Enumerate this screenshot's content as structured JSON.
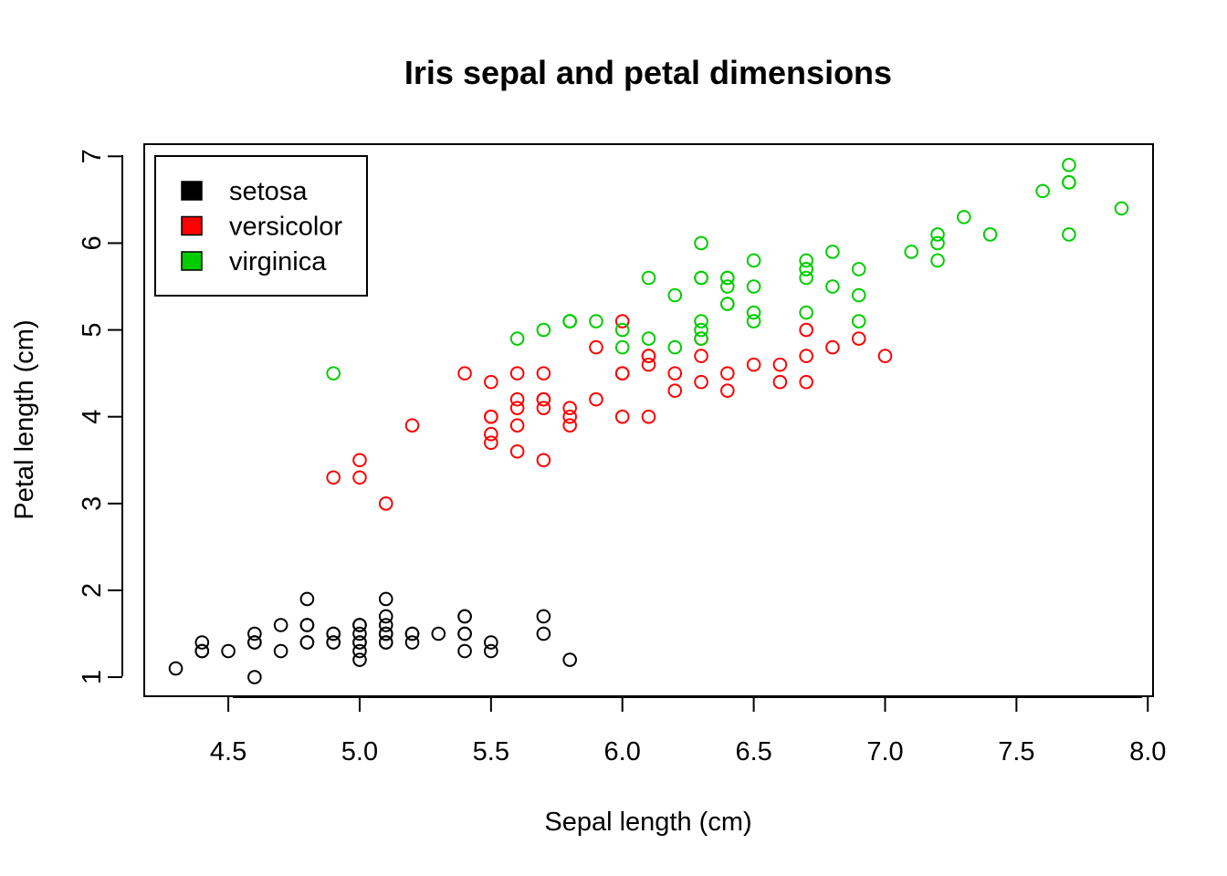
{
  "chart_data": {
    "type": "scatter",
    "title": "Iris sepal and petal dimensions",
    "xlabel": "Sepal length (cm)",
    "ylabel": "Petal length (cm)",
    "xlim": [
      4.18,
      8.02
    ],
    "ylim": [
      0.78,
      7.14
    ],
    "xticks": [
      "4.5",
      "5.0",
      "5.5",
      "6.0",
      "6.5",
      "7.0",
      "7.5",
      "8.0"
    ],
    "yticks": [
      "1",
      "2",
      "3",
      "4",
      "5",
      "6",
      "7"
    ],
    "grid": false,
    "legend_position": "top-left",
    "marker": "open-circle",
    "series": [
      {
        "name": "setosa",
        "color": "#000000",
        "points": [
          [
            5.1,
            1.4
          ],
          [
            4.9,
            1.4
          ],
          [
            4.7,
            1.3
          ],
          [
            4.6,
            1.5
          ],
          [
            5.0,
            1.4
          ],
          [
            5.4,
            1.7
          ],
          [
            4.6,
            1.4
          ],
          [
            5.0,
            1.5
          ],
          [
            4.4,
            1.4
          ],
          [
            4.9,
            1.5
          ],
          [
            5.4,
            1.5
          ],
          [
            4.8,
            1.6
          ],
          [
            4.8,
            1.4
          ],
          [
            4.3,
            1.1
          ],
          [
            5.8,
            1.2
          ],
          [
            5.7,
            1.5
          ],
          [
            5.4,
            1.3
          ],
          [
            5.1,
            1.4
          ],
          [
            5.7,
            1.7
          ],
          [
            5.1,
            1.5
          ],
          [
            5.4,
            1.7
          ],
          [
            5.1,
            1.5
          ],
          [
            4.6,
            1.0
          ],
          [
            5.1,
            1.7
          ],
          [
            4.8,
            1.9
          ],
          [
            5.0,
            1.6
          ],
          [
            5.0,
            1.6
          ],
          [
            5.2,
            1.5
          ],
          [
            5.2,
            1.4
          ],
          [
            4.7,
            1.6
          ],
          [
            4.8,
            1.6
          ],
          [
            5.4,
            1.5
          ],
          [
            5.2,
            1.5
          ],
          [
            5.5,
            1.4
          ],
          [
            4.9,
            1.5
          ],
          [
            5.0,
            1.2
          ],
          [
            5.5,
            1.3
          ],
          [
            4.9,
            1.4
          ],
          [
            4.4,
            1.3
          ],
          [
            5.1,
            1.5
          ],
          [
            5.0,
            1.3
          ],
          [
            4.5,
            1.3
          ],
          [
            4.4,
            1.3
          ],
          [
            5.0,
            1.6
          ],
          [
            5.1,
            1.9
          ],
          [
            4.8,
            1.4
          ],
          [
            5.1,
            1.6
          ],
          [
            4.6,
            1.4
          ],
          [
            5.3,
            1.5
          ],
          [
            5.0,
            1.4
          ]
        ]
      },
      {
        "name": "versicolor",
        "color": "#ff0000",
        "points": [
          [
            7.0,
            4.7
          ],
          [
            6.4,
            4.5
          ],
          [
            6.9,
            4.9
          ],
          [
            5.5,
            4.0
          ],
          [
            6.5,
            4.6
          ],
          [
            5.7,
            4.5
          ],
          [
            6.3,
            4.7
          ],
          [
            4.9,
            3.3
          ],
          [
            6.6,
            4.6
          ],
          [
            5.2,
            3.9
          ],
          [
            5.0,
            3.5
          ],
          [
            5.9,
            4.2
          ],
          [
            6.0,
            4.0
          ],
          [
            6.1,
            4.7
          ],
          [
            5.6,
            3.6
          ],
          [
            6.7,
            4.4
          ],
          [
            5.6,
            4.5
          ],
          [
            5.8,
            4.1
          ],
          [
            6.2,
            4.5
          ],
          [
            5.6,
            3.9
          ],
          [
            5.9,
            4.8
          ],
          [
            6.1,
            4.0
          ],
          [
            6.3,
            4.9
          ],
          [
            6.1,
            4.7
          ],
          [
            6.4,
            4.3
          ],
          [
            6.6,
            4.4
          ],
          [
            6.8,
            4.8
          ],
          [
            6.7,
            5.0
          ],
          [
            6.0,
            4.5
          ],
          [
            5.7,
            3.5
          ],
          [
            5.5,
            3.8
          ],
          [
            5.5,
            3.7
          ],
          [
            5.8,
            3.9
          ],
          [
            6.0,
            5.1
          ],
          [
            5.4,
            4.5
          ],
          [
            6.0,
            4.5
          ],
          [
            6.7,
            4.7
          ],
          [
            6.3,
            4.4
          ],
          [
            5.6,
            4.1
          ],
          [
            5.5,
            4.0
          ],
          [
            5.5,
            4.4
          ],
          [
            6.1,
            4.6
          ],
          [
            5.8,
            4.0
          ],
          [
            5.0,
            3.3
          ],
          [
            5.6,
            4.2
          ],
          [
            5.7,
            4.2
          ],
          [
            5.7,
            4.2
          ],
          [
            6.2,
            4.3
          ],
          [
            5.1,
            3.0
          ],
          [
            5.7,
            4.1
          ]
        ]
      },
      {
        "name": "virginica",
        "color": "#00cd00",
        "points": [
          [
            6.3,
            6.0
          ],
          [
            5.8,
            5.1
          ],
          [
            7.1,
            5.9
          ],
          [
            6.3,
            5.6
          ],
          [
            6.5,
            5.8
          ],
          [
            7.6,
            6.6
          ],
          [
            4.9,
            4.5
          ],
          [
            7.3,
            6.3
          ],
          [
            6.7,
            5.8
          ],
          [
            7.2,
            6.1
          ],
          [
            6.5,
            5.1
          ],
          [
            6.4,
            5.3
          ],
          [
            6.8,
            5.5
          ],
          [
            5.7,
            5.0
          ],
          [
            5.8,
            5.1
          ],
          [
            6.4,
            5.3
          ],
          [
            6.5,
            5.5
          ],
          [
            7.7,
            6.7
          ],
          [
            7.7,
            6.9
          ],
          [
            6.0,
            5.0
          ],
          [
            6.9,
            5.7
          ],
          [
            5.6,
            4.9
          ],
          [
            7.7,
            6.7
          ],
          [
            6.3,
            4.9
          ],
          [
            6.7,
            5.7
          ],
          [
            7.2,
            6.0
          ],
          [
            6.2,
            4.8
          ],
          [
            6.1,
            4.9
          ],
          [
            6.4,
            5.6
          ],
          [
            7.2,
            5.8
          ],
          [
            7.4,
            6.1
          ],
          [
            7.9,
            6.4
          ],
          [
            6.4,
            5.6
          ],
          [
            6.3,
            5.1
          ],
          [
            6.1,
            5.6
          ],
          [
            7.7,
            6.1
          ],
          [
            6.3,
            5.6
          ],
          [
            6.4,
            5.5
          ],
          [
            6.0,
            4.8
          ],
          [
            6.9,
            5.4
          ],
          [
            6.7,
            5.6
          ],
          [
            6.9,
            5.1
          ],
          [
            5.8,
            5.1
          ],
          [
            6.8,
            5.9
          ],
          [
            6.7,
            5.7
          ],
          [
            6.7,
            5.2
          ],
          [
            6.3,
            5.0
          ],
          [
            6.5,
            5.2
          ],
          [
            6.2,
            5.4
          ],
          [
            5.9,
            5.1
          ]
        ]
      }
    ]
  }
}
